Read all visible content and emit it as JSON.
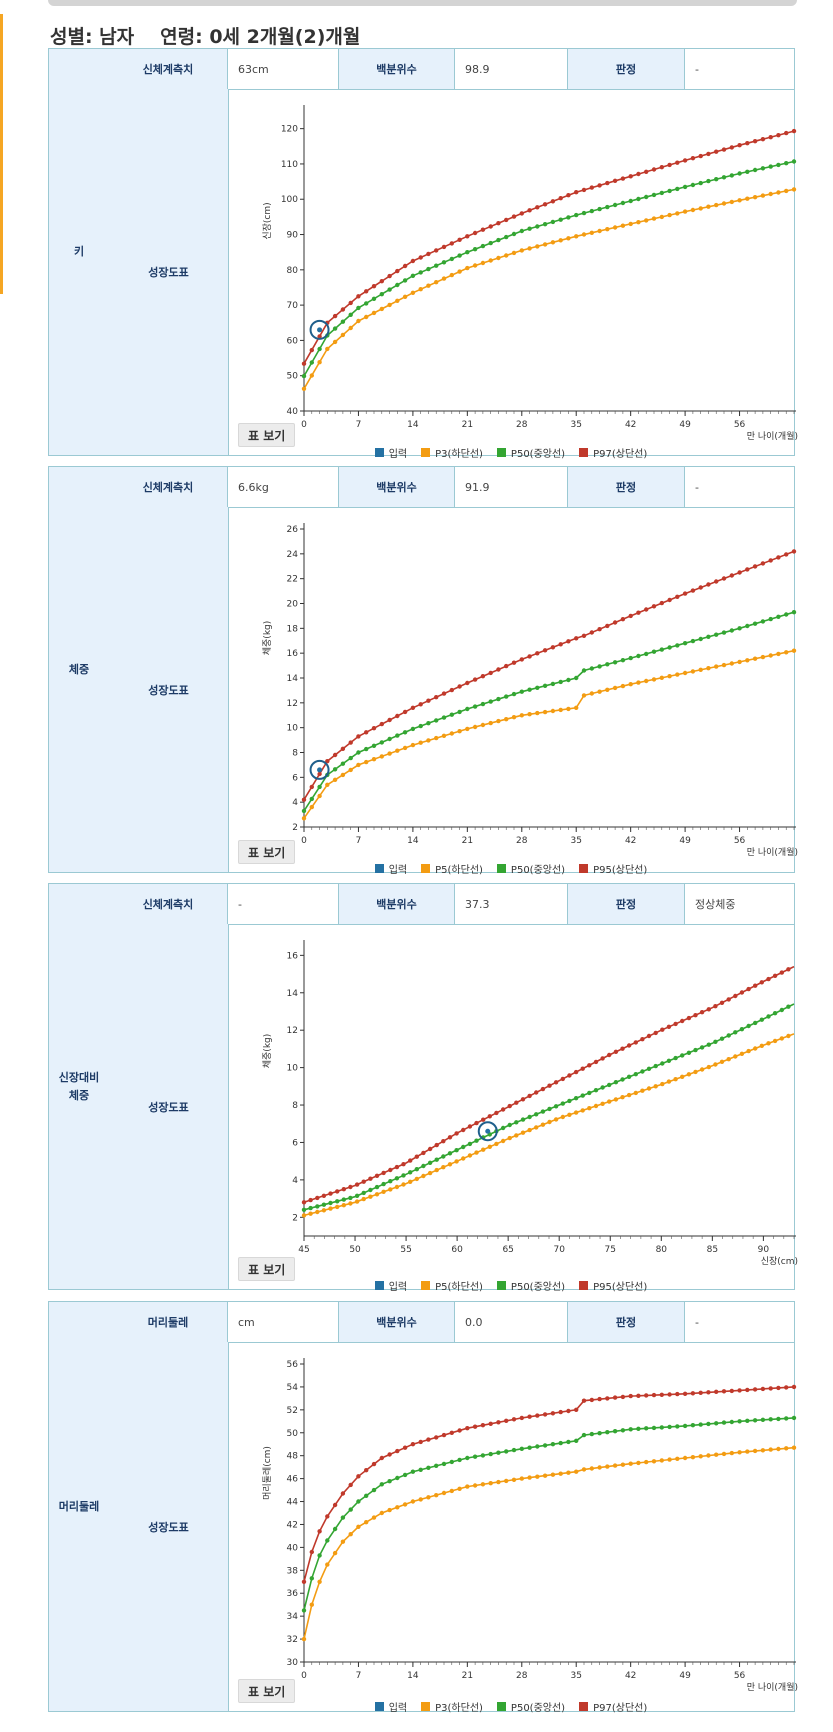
{
  "header": {
    "sex_label": "성별: 남자",
    "age_label": "연령: 0세 2개월(2)개월"
  },
  "colors": {
    "input": "#2471a3",
    "low": "#f39c12",
    "mid": "#33a532",
    "high": "#c0392b",
    "border": "#9bc9d3",
    "label_bg": "#e6f1fb"
  },
  "labels": {
    "measure": "신체계측치",
    "percentile": "백분위수",
    "verdict": "판정",
    "growth_chart": "성장도표",
    "table_button": "표 보기"
  },
  "sections": [
    {
      "category": "키",
      "measure_label": "신체계측치",
      "measure_value": "63cm",
      "percentile_value": "98.9",
      "verdict_value": "-",
      "legend": [
        "입력",
        "P3(하단선)",
        "P50(중앙선)",
        "P97(상단선)"
      ],
      "y_axis_label": "신장(cm)",
      "x_axis_label": "만 나이(개월)",
      "x_ticks": [
        "0",
        "7",
        "14",
        "21",
        "28",
        "35",
        "42",
        "49",
        "56"
      ],
      "y_ticks": [
        "40",
        "50",
        "60",
        "70",
        "80",
        "90",
        "100",
        "110",
        "120"
      ]
    },
    {
      "category": "체중",
      "measure_label": "신체계측치",
      "measure_value": "6.6kg",
      "percentile_value": "91.9",
      "verdict_value": "-",
      "legend": [
        "입력",
        "P5(하단선)",
        "P50(중앙선)",
        "P95(상단선)"
      ],
      "y_axis_label": "체중(kg)",
      "x_axis_label": "만 나이(개월)",
      "x_ticks": [
        "0",
        "7",
        "14",
        "21",
        "28",
        "35",
        "42",
        "49",
        "56"
      ],
      "y_ticks": [
        "2",
        "4",
        "6",
        "8",
        "10",
        "12",
        "14",
        "16",
        "18",
        "20",
        "22",
        "24",
        "26"
      ]
    },
    {
      "category": "신장대비 체중",
      "measure_label": "신체계측치",
      "measure_value": "-",
      "percentile_value": "37.3",
      "verdict_value": "정상체중",
      "legend": [
        "입력",
        "P5(하단선)",
        "P50(중앙선)",
        "P95(상단선)"
      ],
      "y_axis_label": "체중(kg)",
      "x_axis_label": "신장(cm)",
      "x_ticks": [
        "45",
        "50",
        "55",
        "60",
        "65",
        "70",
        "75",
        "80",
        "85",
        "90"
      ],
      "y_ticks": [
        "2",
        "4",
        "6",
        "8",
        "10",
        "12",
        "14",
        "16"
      ]
    },
    {
      "category": "머리둘레",
      "measure_label": "머리둘레",
      "measure_value": "cm",
      "percentile_value": "0.0",
      "verdict_value": "-",
      "legend": [
        "입력",
        "P3(하단선)",
        "P50(중앙선)",
        "P97(상단선)"
      ],
      "y_axis_label": "머리둘레(cm)",
      "x_axis_label": "만 나이(개월)",
      "x_ticks": [
        "0",
        "7",
        "14",
        "21",
        "28",
        "35",
        "42",
        "49",
        "56"
      ],
      "y_ticks": [
        "30",
        "32",
        "34",
        "36",
        "38",
        "40",
        "42",
        "44",
        "46",
        "48",
        "50",
        "52",
        "54",
        "56"
      ]
    }
  ],
  "chart_data": [
    {
      "type": "line",
      "title": "",
      "xlabel": "만 나이(개월)",
      "ylabel": "신장(cm)",
      "xlim": [
        0,
        63
      ],
      "ylim": [
        40,
        125
      ],
      "x": [
        0,
        3,
        7,
        14,
        21,
        28,
        35,
        42,
        49,
        56,
        63
      ],
      "series": [
        {
          "name": "P3(하단선)",
          "values": [
            46.3,
            57.6,
            65.5,
            73.5,
            80.5,
            85.5,
            89.5,
            93.0,
            96.5,
            99.7,
            102.8
          ]
        },
        {
          "name": "P50(중앙선)",
          "values": [
            49.9,
            61.4,
            69.2,
            78.3,
            85.0,
            91.0,
            95.5,
            99.5,
            103.5,
            107.3,
            110.7
          ]
        },
        {
          "name": "P97(상단선)",
          "values": [
            53.4,
            65.0,
            72.5,
            82.5,
            89.5,
            96.0,
            102.0,
            106.5,
            111.0,
            115.3,
            119.3
          ]
        }
      ],
      "input_point": {
        "name": "입력",
        "x": 2,
        "y": 63
      }
    },
    {
      "type": "line",
      "title": "",
      "xlabel": "만 나이(개월)",
      "ylabel": "체중(kg)",
      "xlim": [
        0,
        63
      ],
      "ylim": [
        2,
        26
      ],
      "x": [
        0,
        3,
        7,
        14,
        21,
        28,
        35,
        36,
        42,
        49,
        56,
        63
      ],
      "series": [
        {
          "name": "P5(하단선)",
          "values": [
            2.7,
            5.4,
            7.0,
            8.6,
            9.9,
            11.0,
            11.6,
            12.6,
            13.5,
            14.4,
            15.3,
            16.2
          ]
        },
        {
          "name": "P50(중앙선)",
          "values": [
            3.3,
            6.2,
            8.0,
            9.9,
            11.5,
            12.9,
            14.0,
            14.6,
            15.6,
            16.8,
            18.0,
            19.3
          ]
        },
        {
          "name": "P95(상단선)",
          "values": [
            4.2,
            7.3,
            9.3,
            11.6,
            13.6,
            15.5,
            17.2,
            17.4,
            19.0,
            20.8,
            22.5,
            24.2
          ]
        }
      ],
      "input_point": {
        "name": "입력",
        "x": 2,
        "y": 6.6
      }
    },
    {
      "type": "line",
      "title": "",
      "xlabel": "신장(cm)",
      "ylabel": "체중(kg)",
      "xlim": [
        45,
        93
      ],
      "ylim": [
        1,
        16.5
      ],
      "x": [
        45,
        50,
        55,
        60,
        65,
        70,
        75,
        80,
        85,
        90,
        93
      ],
      "series": [
        {
          "name": "P5(하단선)",
          "values": [
            2.1,
            2.8,
            3.8,
            5.0,
            6.2,
            7.3,
            8.2,
            9.1,
            10.1,
            11.2,
            11.8
          ]
        },
        {
          "name": "P50(중앙선)",
          "values": [
            2.4,
            3.1,
            4.3,
            5.6,
            6.9,
            8.0,
            9.1,
            10.2,
            11.3,
            12.6,
            13.4
          ]
        },
        {
          "name": "P95(상단선)",
          "values": [
            2.8,
            3.7,
            4.9,
            6.5,
            7.9,
            9.3,
            10.7,
            12.0,
            13.2,
            14.6,
            15.4
          ]
        }
      ],
      "input_point": {
        "name": "입력",
        "x": 63,
        "y": 6.6
      }
    },
    {
      "type": "line",
      "title": "",
      "xlabel": "만 나이(개월)",
      "ylabel": "머리둘레(cm)",
      "xlim": [
        0,
        63
      ],
      "ylim": [
        30,
        56
      ],
      "x": [
        0,
        1,
        2,
        3,
        5,
        7,
        10,
        14,
        21,
        28,
        35,
        36,
        42,
        49,
        56,
        63
      ],
      "series": [
        {
          "name": "P3(하단선)",
          "values": [
            32.0,
            35.0,
            37.0,
            38.5,
            40.5,
            41.8,
            43.0,
            44.0,
            45.3,
            46.0,
            46.6,
            46.8,
            47.3,
            47.8,
            48.3,
            48.7
          ]
        },
        {
          "name": "P50(중앙선)",
          "values": [
            34.5,
            37.3,
            39.3,
            40.6,
            42.6,
            44.0,
            45.5,
            46.6,
            47.8,
            48.6,
            49.3,
            49.8,
            50.3,
            50.6,
            51.0,
            51.3
          ]
        },
        {
          "name": "P97(상단선)",
          "values": [
            37.0,
            39.6,
            41.4,
            42.7,
            44.7,
            46.2,
            47.8,
            49.0,
            50.4,
            51.3,
            52.0,
            52.8,
            53.2,
            53.4,
            53.7,
            54.0
          ]
        }
      ]
    }
  ]
}
